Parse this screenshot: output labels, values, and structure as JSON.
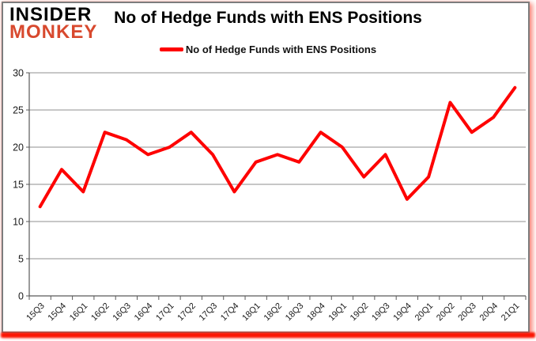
{
  "logo": {
    "line1": "INSIDER",
    "line2": "MONKEY",
    "accent_color": "#d8492e"
  },
  "header": {
    "title": "No of Hedge Funds with ENS Positions"
  },
  "legend": {
    "label": "No of Hedge Funds with ENS Positions",
    "swatch_color": "#fe0000"
  },
  "chart_data": {
    "type": "line",
    "title": "No of Hedge Funds with ENS Positions",
    "categories": [
      "15Q3",
      "15Q4",
      "16Q1",
      "16Q2",
      "16Q3",
      "16Q4",
      "17Q1",
      "17Q2",
      "17Q3",
      "17Q4",
      "18Q1",
      "18Q2",
      "18Q3",
      "18Q4",
      "19Q1",
      "19Q2",
      "19Q3",
      "19Q4",
      "20Q1",
      "20Q2",
      "20Q3",
      "20Q4",
      "21Q1"
    ],
    "series": [
      {
        "name": "No of Hedge Funds with ENS Positions",
        "color": "#fe0000",
        "values": [
          12,
          17,
          14,
          22,
          21,
          19,
          20,
          22,
          19,
          14,
          18,
          19,
          18,
          22,
          20,
          16,
          19,
          13,
          16,
          26,
          22,
          24,
          28
        ]
      }
    ],
    "xlabel": "",
    "ylabel": "",
    "ylim": [
      0,
      30
    ],
    "yticks": [
      0,
      5,
      10,
      15,
      20,
      25,
      30
    ],
    "grid": true,
    "legend_position": "top",
    "colors": {
      "gridline": "#8f8f8f",
      "axis": "#595959",
      "tick_text": "#1a1a1a"
    }
  }
}
